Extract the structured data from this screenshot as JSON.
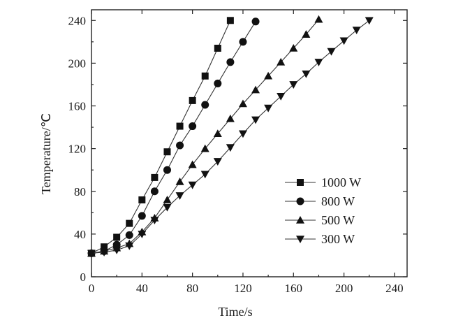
{
  "chart_data": {
    "type": "line",
    "title": "",
    "xlabel": "Time/s",
    "ylabel": "Temperature/℃",
    "xlim": [
      0,
      250
    ],
    "ylim": [
      0,
      250
    ],
    "xticks": [
      0,
      40,
      80,
      120,
      160,
      200,
      240
    ],
    "yticks": [
      0,
      40,
      80,
      120,
      160,
      200,
      240
    ],
    "grid": false,
    "legend_position": "center-right",
    "series": [
      {
        "name": "1000 W",
        "marker": "square",
        "x": [
          0,
          10,
          20,
          30,
          40,
          50,
          60,
          70,
          80,
          90,
          100,
          110
        ],
        "y": [
          22,
          28,
          37,
          50,
          72,
          93,
          117,
          141,
          165,
          188,
          214,
          240
        ]
      },
      {
        "name": "800 W",
        "marker": "circle",
        "x": [
          0,
          10,
          20,
          30,
          40,
          50,
          60,
          70,
          80,
          90,
          100,
          110,
          120,
          130
        ],
        "y": [
          22,
          24,
          30,
          39,
          57,
          80,
          100,
          123,
          141,
          161,
          181,
          201,
          220,
          239
        ]
      },
      {
        "name": "500 W",
        "marker": "triangle-up",
        "x": [
          0,
          10,
          20,
          30,
          40,
          50,
          60,
          70,
          80,
          90,
          100,
          110,
          120,
          130,
          140,
          150,
          160,
          170,
          180
        ],
        "y": [
          22,
          24,
          27,
          31,
          42,
          55,
          72,
          89,
          105,
          120,
          134,
          148,
          162,
          175,
          188,
          201,
          214,
          227,
          241
        ]
      },
      {
        "name": "300 W",
        "marker": "triangle-down",
        "x": [
          0,
          10,
          20,
          30,
          40,
          50,
          60,
          70,
          80,
          90,
          100,
          110,
          120,
          130,
          140,
          150,
          160,
          170,
          180,
          190,
          200,
          210,
          220
        ],
        "y": [
          22,
          23,
          25,
          29,
          40,
          53,
          65,
          76,
          86,
          96,
          108,
          121,
          134,
          147,
          158,
          169,
          180,
          190,
          201,
          211,
          221,
          231,
          240
        ]
      }
    ]
  }
}
